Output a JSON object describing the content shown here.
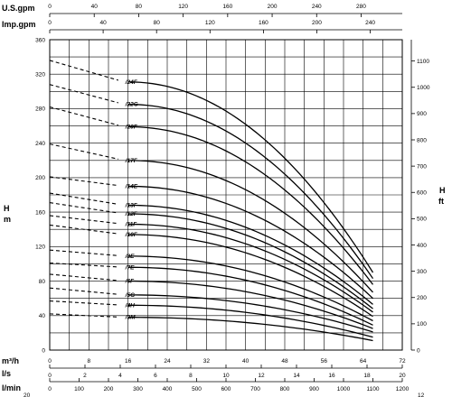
{
  "chart_data": {
    "type": "line",
    "x_axis": {
      "unit": "m³/h",
      "min": 0,
      "max": 72,
      "ticks": [
        0,
        8,
        16,
        24,
        32,
        40,
        48,
        56,
        64,
        72
      ]
    },
    "y_axis": {
      "unit": "H",
      "unit2": "m",
      "min": 0,
      "max": 360,
      "ticks": [
        0,
        40,
        80,
        120,
        160,
        200,
        240,
        280,
        320,
        360
      ]
    },
    "y_axis_right": {
      "unit": "H",
      "unit2": "ft",
      "ticks": [
        0,
        100,
        200,
        300,
        400,
        500,
        600,
        700,
        800,
        900,
        1000,
        1100
      ]
    },
    "top_axes": [
      {
        "unit": "U.S.gpm",
        "ticks": [
          0,
          40,
          80,
          120,
          160,
          200,
          240,
          280
        ]
      },
      {
        "unit": "Imp.gpm",
        "ticks": [
          0,
          40,
          80,
          120,
          160,
          200,
          240
        ]
      }
    ],
    "bottom_axes": [
      {
        "unit": "l/s",
        "ticks": [
          0,
          2,
          4,
          6,
          8,
          10,
          12,
          14,
          16,
          18,
          20
        ]
      },
      {
        "unit": "l/min",
        "ticks": [
          0,
          100,
          200,
          300,
          400,
          500,
          600,
          700,
          800,
          900,
          1000,
          1100,
          1200
        ]
      }
    ],
    "grid": true,
    "curve_start_x": 16,
    "curve_end_x": 66,
    "series": [
      {
        "name": "/24F",
        "dashed_from": 336,
        "y_start": 311,
        "y_end": 90
      },
      {
        "name": "/22G",
        "dashed_from": 308,
        "y_start": 285,
        "y_end": 83
      },
      {
        "name": "/20F",
        "dashed_from": 282,
        "y_start": 259,
        "y_end": 76
      },
      {
        "name": "/17F",
        "dashed_from": 239,
        "y_start": 220,
        "y_end": 67
      },
      {
        "name": "/14E",
        "dashed_from": 201,
        "y_start": 190,
        "y_end": 60
      },
      {
        "name": "/13F",
        "dashed_from": 182,
        "y_start": 168,
        "y_end": 53
      },
      {
        "name": "/12F",
        "dashed_from": 171,
        "y_start": 158,
        "y_end": 48
      },
      {
        "name": "/11F",
        "dashed_from": 156,
        "y_start": 146,
        "y_end": 44
      },
      {
        "name": "/10F",
        "dashed_from": 145,
        "y_start": 134,
        "y_end": 39
      },
      {
        "name": "/8E",
        "dashed_from": 116,
        "y_start": 109,
        "y_end": 34
      },
      {
        "name": "/7E",
        "dashed_from": 101,
        "y_start": 96,
        "y_end": 29
      },
      {
        "name": "/6F",
        "dashed_from": 88,
        "y_start": 80,
        "y_end": 25
      },
      {
        "name": "/5G",
        "dashed_from": 72,
        "y_start": 64,
        "y_end": 21
      },
      {
        "name": "/4H",
        "dashed_from": 57,
        "y_start": 52,
        "y_end": 15
      },
      {
        "name": "/3M",
        "dashed_from": 42,
        "y_start": 38,
        "y_end": 11
      }
    ],
    "corner_notes": {
      "bottom_left": "20",
      "bottom_right": "12"
    }
  }
}
